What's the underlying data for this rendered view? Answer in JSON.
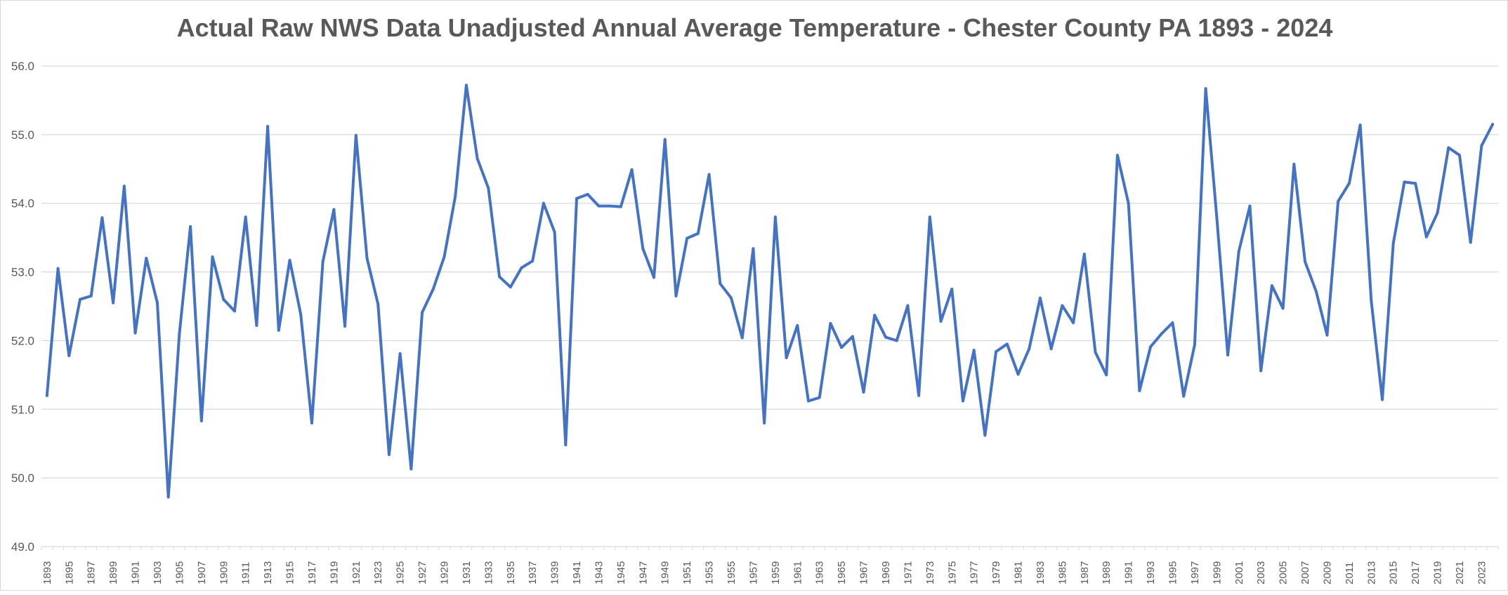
{
  "chart_data": {
    "type": "line",
    "title": "Actual Raw NWS Data Unadjusted Annual Average Temperature - Chester County PA 1893 - 2024",
    "xlabel": "",
    "ylabel": "",
    "ylim": [
      49.0,
      56.0
    ],
    "y_ticks": [
      "49.0",
      "50.0",
      "51.0",
      "52.0",
      "53.0",
      "54.0",
      "55.0",
      "56.0"
    ],
    "x_tick_labels": [
      "1893",
      "1895",
      "1897",
      "1899",
      "1901",
      "1903",
      "1905",
      "1907",
      "1909",
      "1911",
      "1913",
      "1915",
      "1917",
      "1919",
      "1921",
      "1923",
      "1925",
      "1927",
      "1929",
      "1931",
      "1933",
      "1935",
      "1937",
      "1939",
      "1941",
      "1943",
      "1945",
      "1947",
      "1949",
      "1951",
      "1953",
      "1955",
      "1957",
      "1959",
      "1961",
      "1963",
      "1965",
      "1967",
      "1969",
      "1971",
      "1973",
      "1975",
      "1977",
      "1979",
      "1981",
      "1983",
      "1985",
      "1987",
      "1989",
      "1991",
      "1993",
      "1995",
      "1997",
      "1999",
      "2001",
      "2003",
      "2005",
      "2007",
      "2009",
      "2011",
      "2013",
      "2015",
      "2017",
      "2019",
      "2021",
      "2023"
    ],
    "grid": true,
    "legend": "none",
    "line_color": "#4472c4",
    "x": [
      1893,
      1894,
      1895,
      1896,
      1897,
      1898,
      1899,
      1900,
      1901,
      1902,
      1903,
      1904,
      1905,
      1906,
      1907,
      1908,
      1909,
      1910,
      1911,
      1912,
      1913,
      1914,
      1915,
      1916,
      1917,
      1918,
      1919,
      1920,
      1921,
      1922,
      1923,
      1924,
      1925,
      1926,
      1927,
      1928,
      1929,
      1930,
      1931,
      1932,
      1933,
      1934,
      1935,
      1936,
      1937,
      1938,
      1939,
      1940,
      1941,
      1942,
      1943,
      1944,
      1945,
      1946,
      1947,
      1948,
      1949,
      1950,
      1951,
      1952,
      1953,
      1954,
      1955,
      1956,
      1957,
      1958,
      1959,
      1960,
      1961,
      1962,
      1963,
      1964,
      1965,
      1966,
      1967,
      1968,
      1969,
      1970,
      1971,
      1972,
      1973,
      1974,
      1975,
      1976,
      1977,
      1978,
      1979,
      1980,
      1981,
      1982,
      1983,
      1984,
      1985,
      1986,
      1987,
      1988,
      1989,
      1990,
      1991,
      1992,
      1993,
      1994,
      1995,
      1996,
      1997,
      1998,
      1999,
      2000,
      2001,
      2002,
      2003,
      2004,
      2005,
      2006,
      2007,
      2008,
      2009,
      2010,
      2011,
      2012,
      2013,
      2014,
      2015,
      2016,
      2017,
      2018,
      2019,
      2020,
      2021,
      2022,
      2023,
      2024
    ],
    "series": [
      {
        "values": [
          51.2,
          53.05,
          51.78,
          52.6,
          52.65,
          53.79,
          52.55,
          54.25,
          52.11,
          53.2,
          52.55,
          49.72,
          52.1,
          53.66,
          50.83,
          53.22,
          52.6,
          52.43,
          53.8,
          52.22,
          55.12,
          52.15,
          53.17,
          52.38,
          50.8,
          53.15,
          53.91,
          52.21,
          54.99,
          53.2,
          52.53,
          50.34,
          51.81,
          50.13,
          52.41,
          52.75,
          53.22,
          54.1,
          55.72,
          54.65,
          54.22,
          52.93,
          52.78,
          53.06,
          53.16,
          54.0,
          53.58,
          50.48,
          54.07,
          54.13,
          53.96,
          53.96,
          53.95,
          54.49,
          53.34,
          52.92,
          54.93,
          52.65,
          53.49,
          53.56,
          54.42,
          52.83,
          52.62,
          52.04,
          53.34,
          50.8,
          53.8,
          51.75,
          52.22,
          51.12,
          51.17,
          52.25,
          51.9,
          52.06,
          51.25,
          52.37,
          52.05,
          52.0,
          52.51,
          51.2,
          53.8,
          52.28,
          52.75,
          51.12,
          51.86,
          50.62,
          51.84,
          51.95,
          51.51,
          51.88,
          52.62,
          51.88,
          52.51,
          52.26,
          53.26,
          51.83,
          51.5,
          54.7,
          54.0,
          51.27,
          51.91,
          52.1,
          52.26,
          51.19,
          51.94,
          55.67,
          53.8,
          51.79,
          53.3,
          53.96,
          51.56,
          52.8,
          52.47,
          54.57,
          53.15,
          52.72,
          52.08,
          54.03,
          54.29,
          55.14,
          52.58,
          51.14,
          53.42,
          54.31,
          54.29,
          53.51,
          53.86,
          54.81,
          54.7,
          53.43,
          54.84,
          55.15
        ]
      }
    ]
  }
}
